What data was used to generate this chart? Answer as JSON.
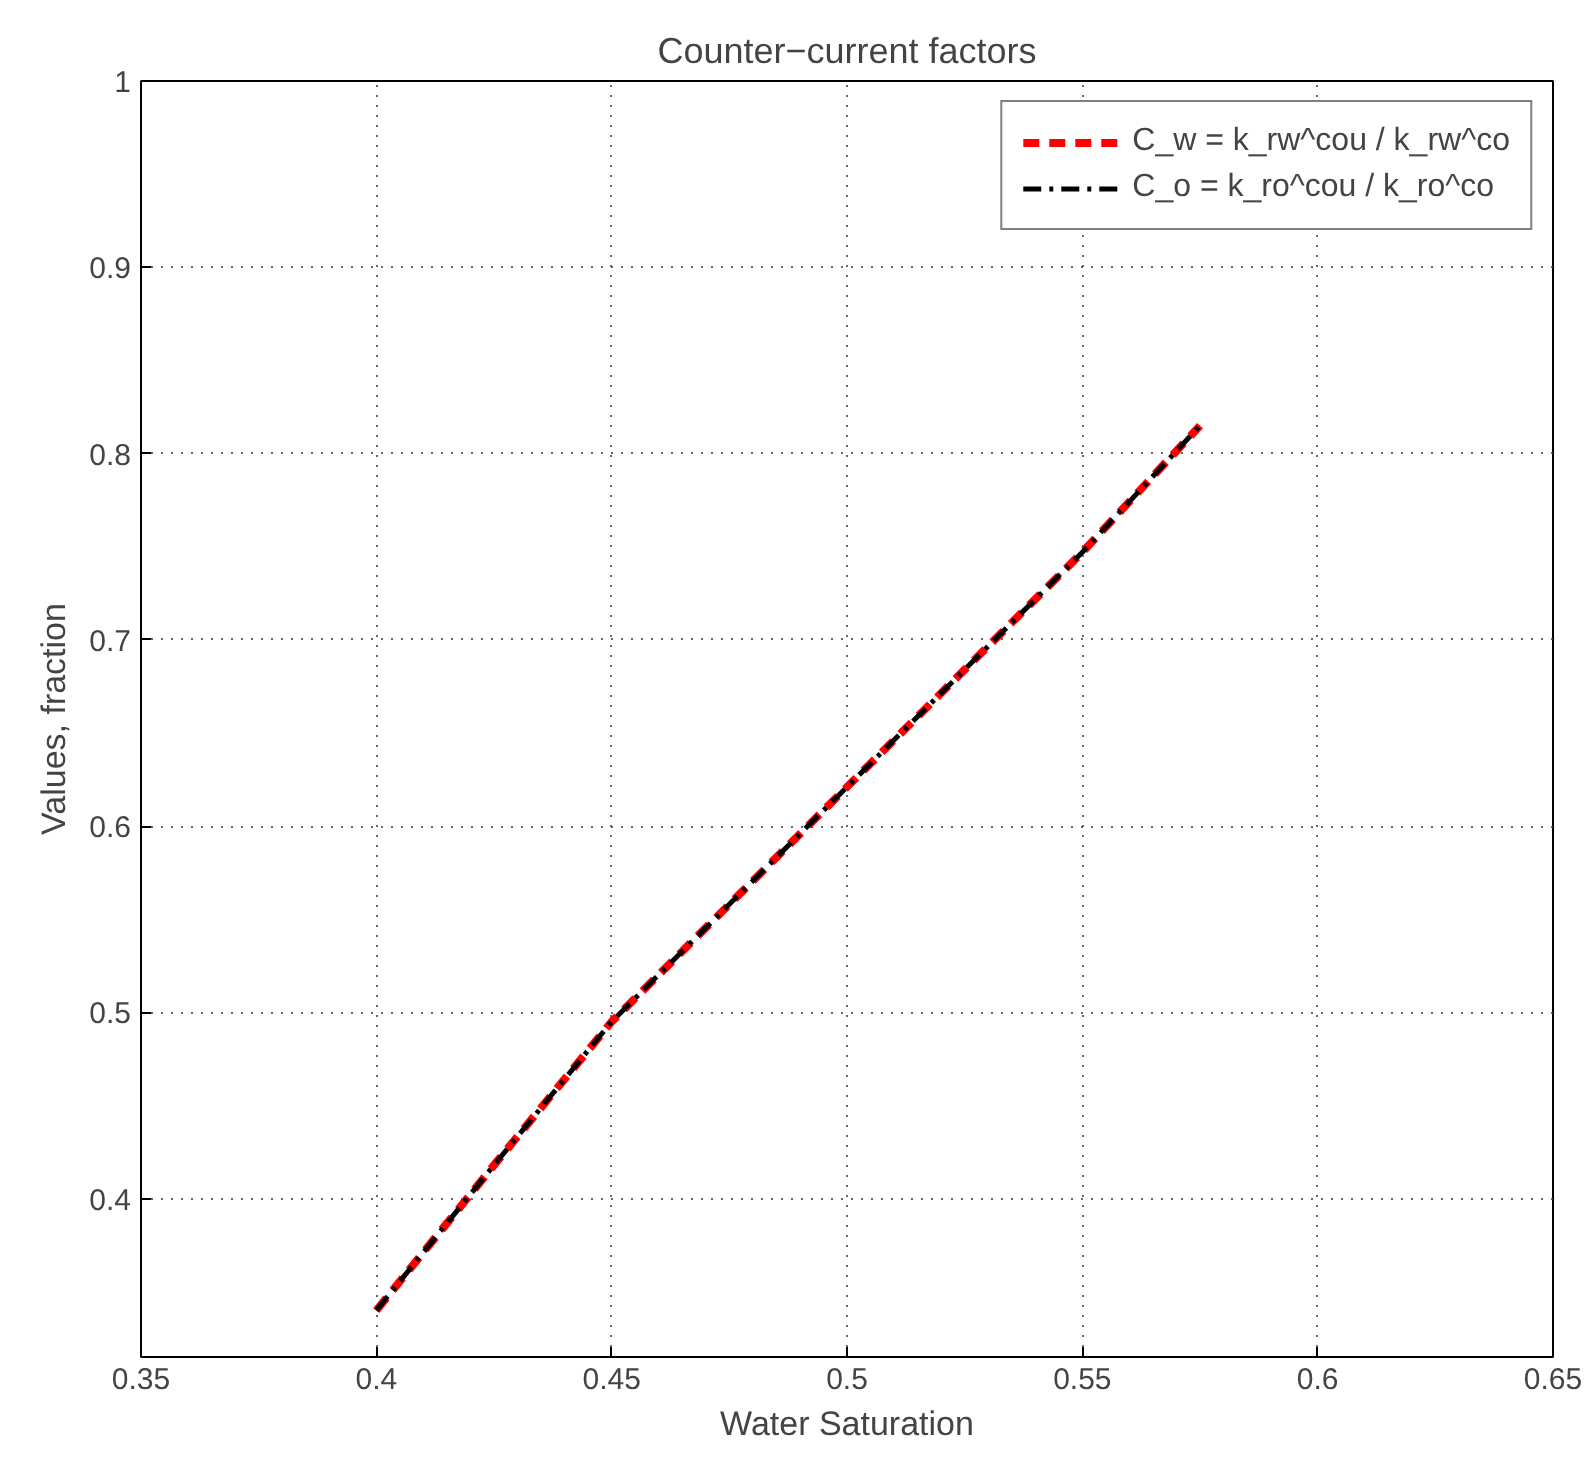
{
  "chart_data": {
    "type": "line",
    "title": "Counter−current factors",
    "xlabel": "Water Saturation",
    "ylabel": "Values, fraction",
    "x": [
      0.4,
      0.425,
      0.45,
      0.475,
      0.5,
      0.525,
      0.55,
      0.575
    ],
    "series": [
      {
        "name": "C_w = k_rw^cou / k_rw^co",
        "color": "#ff0000",
        "line_style": "dashed",
        "values": [
          0.34,
          0.418,
          0.495,
          0.558,
          0.621,
          0.684,
          0.747,
          0.815
        ]
      },
      {
        "name": "C_o = k_ro^cou / k_ro^co",
        "color": "#000000",
        "line_style": "dashdot",
        "values": [
          0.34,
          0.418,
          0.495,
          0.558,
          0.621,
          0.684,
          0.747,
          0.815
        ]
      }
    ],
    "xlim": [
      0.35,
      0.65
    ],
    "ylim": [
      0.315,
      1
    ],
    "xticks": [
      0.35,
      0.4,
      0.45,
      0.5,
      0.55,
      0.6,
      0.65
    ],
    "yticks": [
      0.4,
      0.5,
      0.6,
      0.7,
      0.8,
      0.9,
      1
    ],
    "grid": true,
    "legend": "top right",
    "marker": "none"
  }
}
